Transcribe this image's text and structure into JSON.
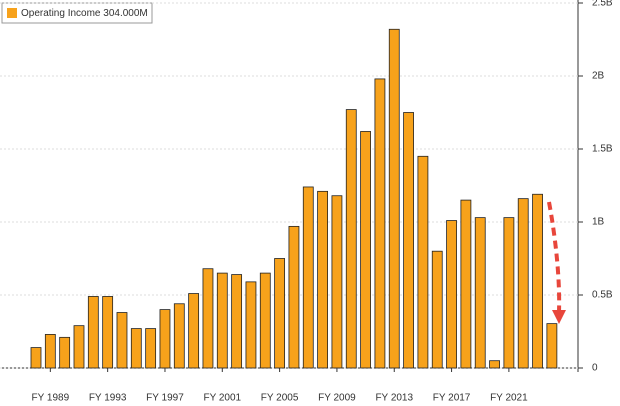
{
  "chart_data": {
    "type": "bar",
    "legend_label": "Operating Income 304.000M",
    "categories": [
      null,
      "FY 1989",
      null,
      null,
      null,
      "FY 1993",
      null,
      null,
      null,
      "FY 1997",
      null,
      null,
      null,
      "FY 2001",
      null,
      null,
      null,
      "FY 2005",
      null,
      null,
      null,
      "FY 2009",
      null,
      null,
      null,
      "FY 2013",
      null,
      null,
      null,
      "FY 2017",
      null,
      null,
      null,
      "FY 2021",
      null,
      null,
      null
    ],
    "values": [
      0.14,
      0.23,
      0.21,
      0.29,
      0.49,
      0.49,
      0.38,
      0.27,
      0.27,
      0.4,
      0.44,
      0.51,
      0.68,
      0.65,
      0.64,
      0.59,
      0.65,
      0.75,
      0.97,
      1.24,
      1.21,
      1.18,
      1.77,
      1.62,
      1.98,
      2.32,
      1.75,
      1.45,
      0.8,
      1.01,
      1.15,
      1.03,
      0.05,
      1.03,
      1.16,
      1.19,
      0.304
    ],
    "color": "#f7a21b",
    "ylim": [
      0,
      2.5
    ],
    "yticks": [
      0,
      {
        "value": 0.5,
        "label": "0.5B"
      },
      {
        "value": 1,
        "label": "1B"
      },
      {
        "value": 1.5,
        "label": "1.5B"
      },
      {
        "value": 2,
        "label": "2B"
      },
      {
        "value": 2.5,
        "label": "2.5B"
      }
    ],
    "grid": true
  }
}
